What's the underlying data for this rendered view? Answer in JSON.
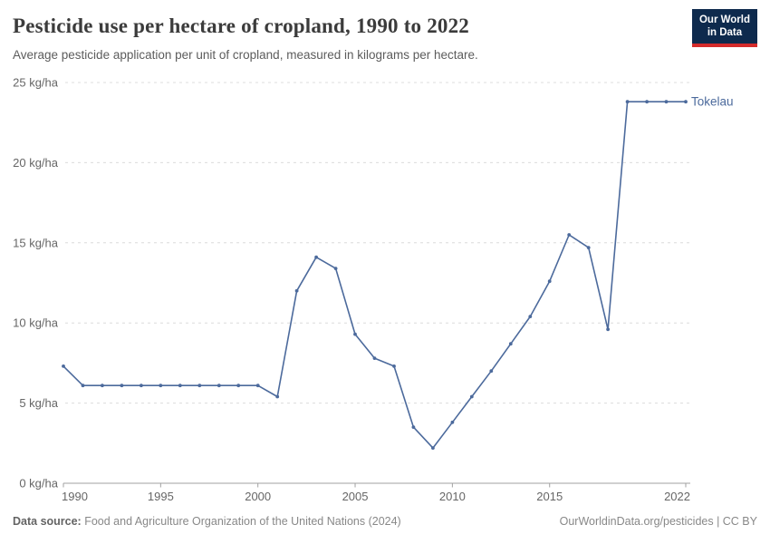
{
  "header": {
    "logo": {
      "line1": "Our World",
      "line2": "in Data"
    }
  },
  "chart_data": {
    "type": "line",
    "title": "Pesticide use per hectare of cropland, 1990 to 2022",
    "subtitle": "Average pesticide application per unit of cropland, measured in kilograms per hectare.",
    "x": [
      1990,
      1991,
      1992,
      1993,
      1994,
      1995,
      1996,
      1997,
      1998,
      1999,
      2000,
      2001,
      2002,
      2003,
      2004,
      2005,
      2006,
      2007,
      2008,
      2009,
      2010,
      2011,
      2012,
      2013,
      2014,
      2015,
      2016,
      2017,
      2018,
      2019,
      2020,
      2021,
      2022
    ],
    "series": [
      {
        "name": "Tokelau",
        "color": "#4c6a9c",
        "values": [
          7.3,
          6.1,
          6.1,
          6.1,
          6.1,
          6.1,
          6.1,
          6.1,
          6.1,
          6.1,
          6.1,
          5.4,
          12.0,
          14.1,
          13.4,
          9.3,
          7.8,
          7.3,
          3.5,
          2.2,
          3.8,
          5.4,
          7.0,
          8.7,
          10.4,
          12.6,
          15.5,
          14.7,
          9.6,
          23.8,
          23.8,
          23.8,
          23.8
        ]
      }
    ],
    "xlabel": "",
    "ylabel": "kg/ha",
    "xlim": [
      1990,
      2022
    ],
    "ylim": [
      0,
      25
    ],
    "yticks": [
      {
        "value": 0,
        "label": "0 kg/ha"
      },
      {
        "value": 5,
        "label": "5 kg/ha"
      },
      {
        "value": 10,
        "label": "10 kg/ha"
      },
      {
        "value": 15,
        "label": "15 kg/ha"
      },
      {
        "value": 20,
        "label": "20 kg/ha"
      },
      {
        "value": 25,
        "label": "25 kg/ha"
      }
    ],
    "xticks": [
      1990,
      1995,
      2000,
      2005,
      2010,
      2015,
      2022
    ],
    "grid": "horizontal-dashed",
    "legend": "end-of-line-label",
    "colors": {
      "grid": "#dcdcdc",
      "axis": "#a1a1a1",
      "tick_text": "#666666"
    }
  },
  "footer": {
    "source_label": "Data source:",
    "source_text": " Food and Agriculture Organization of the United Nations (2024)",
    "credit": "OurWorldinData.org/pesticides | CC BY"
  }
}
